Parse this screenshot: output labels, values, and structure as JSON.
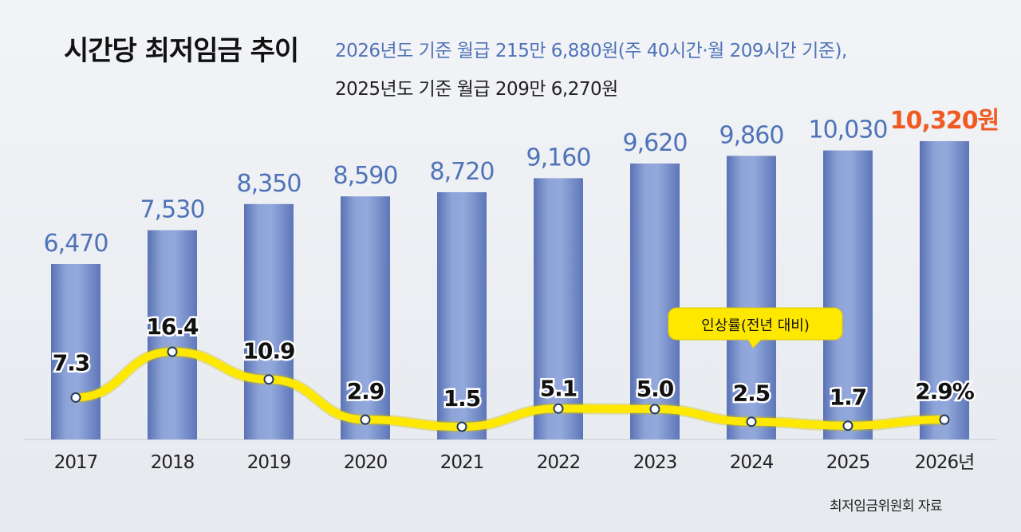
{
  "header": {
    "title": "시간당 최저임금 추이",
    "subtitle_line1": "2026년도 기준 월급 215만 6,880원(주 40시간·월 209시간 기준),",
    "subtitle_line2": "2025년도 기준 월급 209만 6,270원"
  },
  "source": "최저임금위원회 자료",
  "colors": {
    "bar": "#7b93cc",
    "bar_value_text": "#4f73b8",
    "highlight_value_text": "#f05a22",
    "rate_line": "#ffe800",
    "marker_stroke": "#1f3a73",
    "legend_box": "#ffe800"
  },
  "chart_data": [
    {
      "type": "bar",
      "categories": [
        "2017",
        "2018",
        "2019",
        "2020",
        "2021",
        "2022",
        "2023",
        "2024",
        "2025",
        "2026년"
      ],
      "values": [
        6470,
        7530,
        8350,
        8590,
        8720,
        9160,
        9620,
        9860,
        10030,
        10320
      ],
      "value_labels": [
        "6,470",
        "7,530",
        "8,350",
        "8,590",
        "8,720",
        "9,160",
        "9,620",
        "9,860",
        "10,030",
        "10,320원"
      ],
      "highlight_index": 9
    },
    {
      "type": "line",
      "name": "인상률(전년 대비)",
      "categories": [
        "2017",
        "2018",
        "2019",
        "2020",
        "2021",
        "2022",
        "2023",
        "2024",
        "2025",
        "2026년"
      ],
      "values": [
        7.3,
        16.4,
        10.9,
        2.9,
        1.5,
        5.1,
        5.0,
        2.5,
        1.7,
        2.9
      ],
      "value_labels": [
        "7.3",
        "16.4",
        "10.9",
        "2.9",
        "1.5",
        "5.1",
        "5.0",
        "2.5",
        "1.7",
        "2.9%"
      ],
      "legend_placement": "above-right"
    }
  ]
}
